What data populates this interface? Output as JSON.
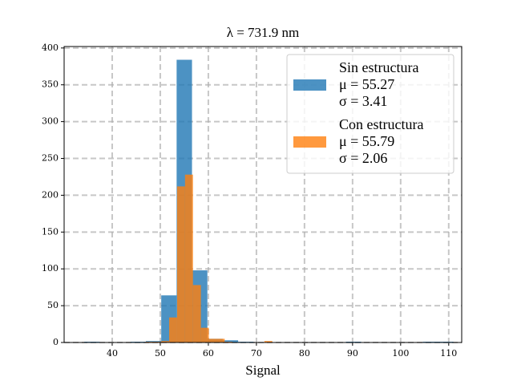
{
  "chart_data": {
    "type": "histogram",
    "title": "λ = 731.9 nm",
    "x_label": "Signal",
    "xlim": [
      30,
      112.7
    ],
    "ylim": [
      0,
      402
    ],
    "xticks": [
      40,
      50,
      60,
      70,
      80,
      90,
      100,
      110
    ],
    "yticks": [
      0,
      50,
      100,
      150,
      200,
      250,
      300,
      350,
      400
    ],
    "grid": true,
    "legend": "upper right",
    "series": [
      {
        "name": "Sin estructura",
        "stats": [
          "μ = 55.27",
          "σ = 3.41"
        ],
        "color": "#1f77b4",
        "bins": [
          34.2,
          37.4,
          40.6,
          43.8,
          47,
          50.2,
          53.4,
          56.6,
          59.8,
          63,
          66.2,
          69.4,
          72.6,
          75.8,
          79,
          82.2,
          85.4,
          88.6,
          91.8,
          95,
          98.2,
          101.4,
          104.6,
          107.8,
          111
        ],
        "values": [
          1,
          0,
          0,
          1,
          2,
          64,
          384,
          98,
          5,
          3,
          1,
          0,
          0,
          0,
          0,
          0,
          0,
          1,
          0,
          0,
          0,
          0,
          1,
          1
        ]
      },
      {
        "name": "Con estructura",
        "stats": [
          "μ = 55.79",
          "σ = 2.06"
        ],
        "color": "#ff7f0e",
        "bins": [
          46.9,
          48.55,
          50.2,
          51.85,
          53.5,
          55.15,
          56.8,
          58.45,
          60.1,
          61.75,
          63.4,
          65.05,
          66.7,
          68.35,
          70,
          71.65,
          73.3
        ],
        "values": [
          1,
          1,
          2,
          34,
          212,
          228,
          78,
          20,
          5,
          5,
          1,
          0,
          0,
          0,
          0,
          2
        ]
      }
    ]
  }
}
